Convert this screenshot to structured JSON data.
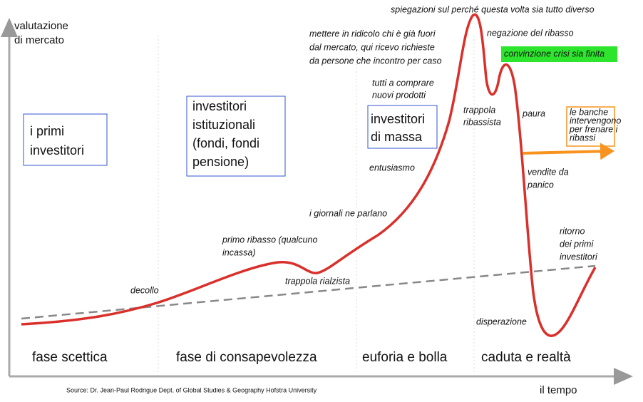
{
  "axes": {
    "y_label": [
      "valutazione",
      "di mercato"
    ],
    "x_label": "il tempo"
  },
  "phases": [
    "fase scettica",
    "fase di consapevolezza",
    "euforia e bolla",
    "caduta e realtà"
  ],
  "boxes": [
    [
      "i primi",
      "investitori"
    ],
    [
      "investitori",
      "istituzionali",
      "(fondi, fondi",
      "pensione)"
    ],
    [
      "investitori",
      "di massa"
    ]
  ],
  "annotations": [
    [
      "spiegazioni sul perché questa volta sia tutto diverso"
    ],
    [
      "negazione del ribasso"
    ],
    [
      "convinzione crisi sia finita"
    ],
    [
      "mettere in ridicolo chi è già fuori",
      "dal mercato, qui ricevo richieste",
      "da persone che incontro per caso"
    ],
    [
      "tutti a comprare",
      "nuovi prodotti"
    ],
    [
      "trappola",
      "ribassista"
    ],
    [
      "paura"
    ],
    [
      "le banche",
      "intervengono",
      "per frenare i",
      "ribassi"
    ],
    [
      "vendite da",
      "panico"
    ],
    [
      "entusiasmo"
    ],
    [
      "i giornali ne parlano"
    ],
    [
      "primo ribasso (qualcuno",
      "incassa)"
    ],
    [
      "trappola rialzista"
    ],
    [
      "decollo"
    ],
    [
      "ritorno",
      "dei primi",
      "investitori"
    ],
    [
      "disperazione"
    ]
  ],
  "source": "Source: Dr. Jean-Paul Rodrigue Dept. of Global Studies & Geography Hofstra University"
}
